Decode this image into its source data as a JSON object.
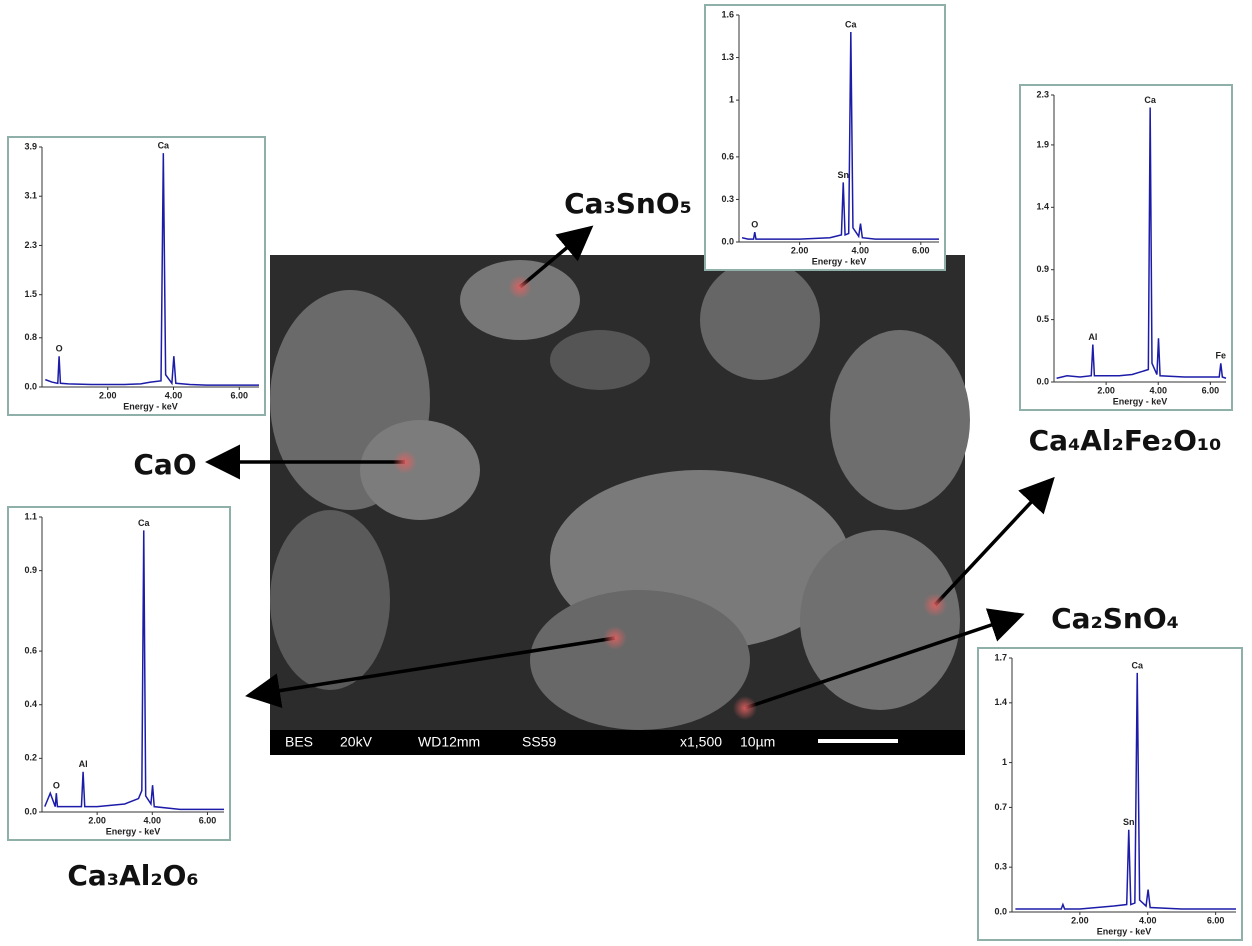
{
  "sem_image": {
    "caption": [
      "BES",
      "20kV",
      "WD12mm",
      "SS59",
      "x1,500",
      "10µm"
    ]
  },
  "chart_data": [
    {
      "type": "line",
      "title": "CaO",
      "xlabel": "Energy - keV",
      "xlim": [
        0,
        6.6
      ],
      "xticks": [
        {
          "value": 2,
          "label": "2.00"
        },
        {
          "value": 4,
          "label": "4.00"
        },
        {
          "value": 6,
          "label": "6.00"
        }
      ],
      "ylim": [
        0,
        3.9
      ],
      "yticks": [
        {
          "value": 0,
          "label": "0.0"
        },
        0.8,
        1.5,
        2.3,
        3.1,
        3.9
      ],
      "x": [
        0.1,
        0.3,
        0.48,
        0.52,
        0.56,
        0.8,
        1.5,
        2.0,
        2.5,
        3.0,
        3.3,
        3.62,
        3.69,
        3.76,
        3.95,
        4.01,
        4.07,
        4.5,
        5.0,
        5.5,
        6.0,
        6.6
      ],
      "series": [
        {
          "color": "#1c1ca8",
          "values": [
            0.12,
            0.08,
            0.06,
            0.5,
            0.06,
            0.05,
            0.04,
            0.04,
            0.04,
            0.05,
            0.08,
            0.1,
            3.8,
            0.2,
            0.06,
            0.5,
            0.06,
            0.04,
            0.03,
            0.03,
            0.03,
            0.03
          ]
        }
      ],
      "annotations": [
        {
          "text": "O",
          "x": 0.52
        },
        {
          "text": "Ca",
          "x": 3.69
        }
      ]
    },
    {
      "type": "line",
      "title": "Ca₃SnO₅",
      "xlabel": "Energy - keV",
      "xlim": [
        0,
        6.6
      ],
      "xticks": [
        {
          "value": 2,
          "label": "2.00"
        },
        {
          "value": 4,
          "label": "4.00"
        },
        {
          "value": 6,
          "label": "6.00"
        }
      ],
      "ylim": [
        0,
        1.6
      ],
      "yticks": [
        {
          "value": 0,
          "label": "0.0"
        },
        0.3,
        0.6,
        1.0,
        1.3,
        1.6
      ],
      "x": [
        0.1,
        0.3,
        0.48,
        0.52,
        0.56,
        1.0,
        2.0,
        3.0,
        3.38,
        3.44,
        3.5,
        3.62,
        3.69,
        3.76,
        3.95,
        4.01,
        4.07,
        4.5,
        5.0,
        6.0,
        6.6
      ],
      "series": [
        {
          "color": "#1c1ca8",
          "values": [
            0.03,
            0.02,
            0.02,
            0.07,
            0.02,
            0.02,
            0.02,
            0.03,
            0.05,
            0.42,
            0.05,
            0.06,
            1.48,
            0.1,
            0.04,
            0.13,
            0.03,
            0.02,
            0.02,
            0.02,
            0.02
          ]
        }
      ],
      "annotations": [
        {
          "text": "O",
          "x": 0.52
        },
        {
          "text": "Sn",
          "x": 3.44
        },
        {
          "text": "Ca",
          "x": 3.69
        }
      ]
    },
    {
      "type": "line",
      "title": "Ca₄Al₂Fe₂O₁₀",
      "xlabel": "Energy - keV",
      "xlim": [
        0,
        6.6
      ],
      "xticks": [
        {
          "value": 2,
          "label": "2.00"
        },
        {
          "value": 4,
          "label": "4.00"
        },
        {
          "value": 6,
          "label": "6.00"
        }
      ],
      "ylim": [
        0,
        2.3
      ],
      "yticks": [
        {
          "value": 0,
          "label": "0.0"
        },
        0.5,
        0.9,
        1.4,
        1.9,
        2.3
      ],
      "x": [
        0.1,
        0.5,
        1.0,
        1.43,
        1.49,
        1.55,
        2.0,
        2.5,
        3.0,
        3.62,
        3.69,
        3.76,
        3.95,
        4.01,
        4.07,
        5.0,
        6.0,
        6.34,
        6.4,
        6.46,
        6.6
      ],
      "series": [
        {
          "color": "#1c1ca8",
          "values": [
            0.03,
            0.05,
            0.04,
            0.05,
            0.3,
            0.05,
            0.05,
            0.05,
            0.06,
            0.1,
            2.2,
            0.15,
            0.06,
            0.35,
            0.05,
            0.04,
            0.04,
            0.04,
            0.15,
            0.04,
            0.03
          ]
        }
      ],
      "annotations": [
        {
          "text": "Al",
          "x": 1.49
        },
        {
          "text": "Ca",
          "x": 3.69
        },
        {
          "text": "Fe",
          "x": 6.4
        }
      ]
    },
    {
      "type": "line",
      "title": "Ca₃Al₂O₆",
      "xlabel": "Energy - keV",
      "xlim": [
        0,
        6.6
      ],
      "xticks": [
        {
          "value": 2,
          "label": "2.00"
        },
        {
          "value": 4,
          "label": "4.00"
        },
        {
          "value": 6,
          "label": "6.00"
        }
      ],
      "ylim": [
        0,
        1.1
      ],
      "yticks": [
        {
          "value": 0,
          "label": "0.0"
        },
        0.2,
        0.4,
        0.6,
        0.9,
        1.1
      ],
      "x": [
        0.1,
        0.3,
        0.48,
        0.52,
        0.56,
        1.0,
        1.43,
        1.49,
        1.55,
        2.0,
        3.0,
        3.5,
        3.62,
        3.69,
        3.76,
        3.95,
        4.01,
        4.07,
        5.0,
        6.0,
        6.6
      ],
      "series": [
        {
          "color": "#1c1ca8",
          "values": [
            0.02,
            0.07,
            0.02,
            0.07,
            0.02,
            0.02,
            0.02,
            0.15,
            0.02,
            0.02,
            0.03,
            0.05,
            0.08,
            1.05,
            0.06,
            0.03,
            0.1,
            0.02,
            0.01,
            0.01,
            0.01
          ]
        }
      ],
      "annotations": [
        {
          "text": "O",
          "x": 0.52
        },
        {
          "text": "Al",
          "x": 1.49
        },
        {
          "text": "Ca",
          "x": 3.69
        }
      ]
    },
    {
      "type": "line",
      "title": "Ca₂SnO₄",
      "xlabel": "Energy - keV",
      "xlim": [
        0,
        6.6
      ],
      "xticks": [
        {
          "value": 2,
          "label": "2.00"
        },
        {
          "value": 4,
          "label": "4.00"
        },
        {
          "value": 6,
          "label": "6.00"
        }
      ],
      "ylim": [
        0,
        1.7
      ],
      "yticks": [
        {
          "value": 0,
          "label": "0.0"
        },
        0.3,
        0.7,
        1.0,
        1.4,
        1.7
      ],
      "x": [
        0.1,
        0.5,
        1.0,
        1.45,
        1.5,
        1.55,
        2.0,
        3.0,
        3.38,
        3.44,
        3.5,
        3.62,
        3.69,
        3.76,
        3.95,
        4.01,
        4.07,
        5.0,
        6.0,
        6.6
      ],
      "series": [
        {
          "color": "#1c1ca8",
          "values": [
            0.02,
            0.02,
            0.02,
            0.02,
            0.05,
            0.02,
            0.02,
            0.04,
            0.05,
            0.55,
            0.05,
            0.06,
            1.6,
            0.08,
            0.04,
            0.15,
            0.03,
            0.02,
            0.02,
            0.02
          ]
        }
      ],
      "annotations": [
        {
          "text": "Sn",
          "x": 3.44
        },
        {
          "text": "Ca",
          "x": 3.69
        }
      ]
    }
  ]
}
